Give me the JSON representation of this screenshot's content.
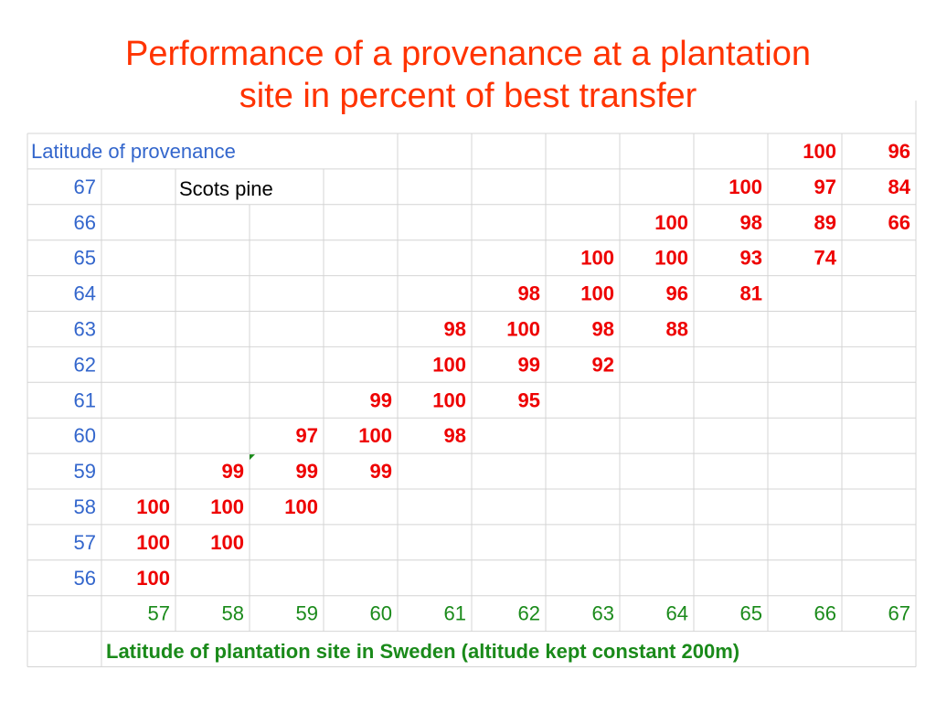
{
  "title": {
    "line1": "Performance of a provenance at a plantation",
    "line2": "site in percent of best transfer"
  },
  "chart_data": {
    "type": "table",
    "species_label": "Scots pine",
    "row_header": "Latitude of provenance",
    "column_header": "Latitude of plantation site in Sweden (altitude kept constant 200m)",
    "site_latitudes": [
      "57",
      "58",
      "59",
      "60",
      "61",
      "62",
      "63",
      "64",
      "65",
      "66",
      "67"
    ],
    "rows": [
      {
        "provenance": "",
        "values": [
          null,
          null,
          null,
          null,
          null,
          null,
          null,
          null,
          null,
          100,
          96
        ]
      },
      {
        "provenance": "67",
        "values": [
          null,
          null,
          null,
          null,
          null,
          null,
          null,
          null,
          100,
          97,
          84
        ]
      },
      {
        "provenance": "66",
        "values": [
          null,
          null,
          null,
          null,
          null,
          null,
          null,
          100,
          98,
          89,
          66
        ]
      },
      {
        "provenance": "65",
        "values": [
          null,
          null,
          null,
          null,
          null,
          null,
          100,
          100,
          93,
          74,
          null
        ]
      },
      {
        "provenance": "64",
        "values": [
          null,
          null,
          null,
          null,
          null,
          98,
          100,
          96,
          81,
          null,
          null
        ]
      },
      {
        "provenance": "63",
        "values": [
          null,
          null,
          null,
          null,
          98,
          100,
          98,
          88,
          null,
          null,
          null
        ]
      },
      {
        "provenance": "62",
        "values": [
          null,
          null,
          null,
          null,
          100,
          99,
          92,
          null,
          null,
          null,
          null
        ]
      },
      {
        "provenance": "61",
        "values": [
          null,
          null,
          null,
          99,
          100,
          95,
          null,
          null,
          null,
          null,
          null
        ]
      },
      {
        "provenance": "60",
        "values": [
          null,
          null,
          97,
          100,
          98,
          null,
          null,
          null,
          null,
          null,
          null
        ]
      },
      {
        "provenance": "59",
        "values": [
          null,
          99,
          99,
          99,
          null,
          null,
          null,
          null,
          null,
          null,
          null
        ]
      },
      {
        "provenance": "58",
        "values": [
          100,
          100,
          100,
          null,
          null,
          null,
          null,
          null,
          null,
          null,
          null
        ]
      },
      {
        "provenance": "57",
        "values": [
          100,
          100,
          null,
          null,
          null,
          null,
          null,
          null,
          null,
          null,
          null
        ]
      },
      {
        "provenance": "56",
        "values": [
          100,
          null,
          null,
          null,
          null,
          null,
          null,
          null,
          null,
          null,
          null
        ]
      }
    ],
    "colors": {
      "title": "#ff3300",
      "provenance_labels": "#3366cc",
      "values": "#ee0000",
      "site_labels": "#1a8a1a",
      "grid": "#d4d4d4"
    }
  }
}
